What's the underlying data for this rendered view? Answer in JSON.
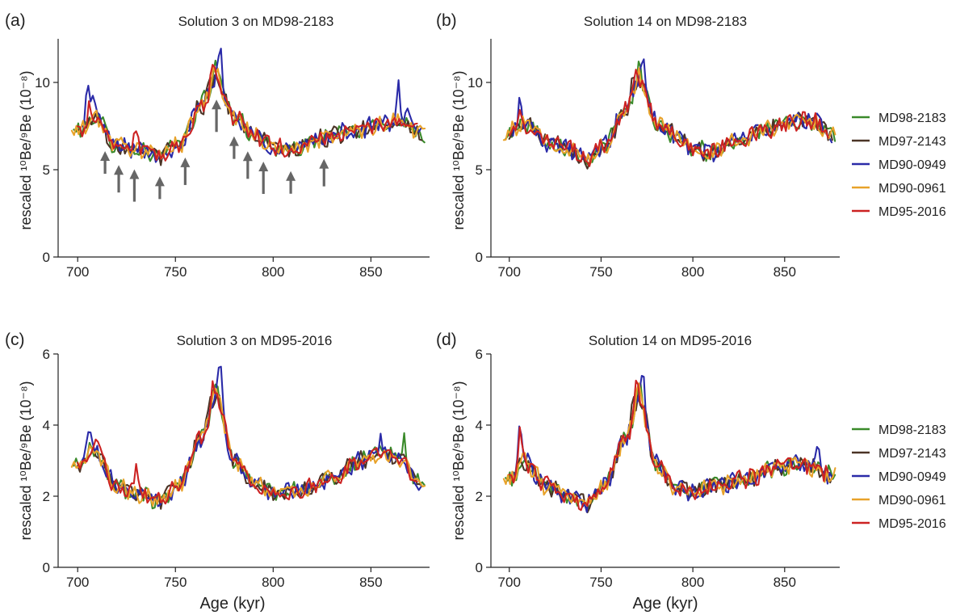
{
  "legend_series": [
    {
      "name": "MD98-2183",
      "color": "#3a8a2a"
    },
    {
      "name": "MD97-2143",
      "color": "#4b3426"
    },
    {
      "name": "MD90-0949",
      "color": "#2a2aa8"
    },
    {
      "name": "MD90-0961",
      "color": "#e8a22a"
    },
    {
      "name": "MD95-2016",
      "color": "#cc2222"
    }
  ],
  "arrow_color": "#666666",
  "chart_data": [
    {
      "type": "line",
      "panel": "(a)",
      "title": "Solution 3 on MD98-2183",
      "xlabel": "",
      "ylabel": "rescaled ¹⁰Be/⁹Be (10⁻⁸)",
      "xlim": [
        690,
        880
      ],
      "ylim": [
        0,
        12.5
      ],
      "xticks": [
        700,
        750,
        800,
        850
      ],
      "yticks": [
        0,
        5,
        10
      ],
      "anchors": [
        [
          700,
          7.2
        ],
        [
          710,
          8.0
        ],
        [
          718,
          6.5
        ],
        [
          730,
          6.2
        ],
        [
          742,
          5.8
        ],
        [
          752,
          6.5
        ],
        [
          763,
          8.6
        ],
        [
          771,
          10.2
        ],
        [
          780,
          8.1
        ],
        [
          790,
          7.0
        ],
        [
          800,
          6.3
        ],
        [
          810,
          6.1
        ],
        [
          825,
          6.8
        ],
        [
          840,
          7.2
        ],
        [
          855,
          7.6
        ],
        [
          865,
          7.8
        ],
        [
          875,
          7.1
        ]
      ],
      "arrows": [
        714,
        721,
        729,
        742,
        755,
        771,
        780,
        787,
        795,
        809,
        826
      ],
      "series": [
        {
          "name": "MD98-2183",
          "x_range": [
            698,
            878
          ],
          "spikes": [
            [
              771,
              1.1
            ],
            [
              765,
              0.5
            ]
          ]
        },
        {
          "name": "MD97-2143",
          "x_range": [
            700,
            876
          ],
          "spikes": [
            [
              767,
              0.9
            ],
            [
              840,
              0.5
            ]
          ]
        },
        {
          "name": "MD90-0949",
          "x_range": [
            702,
            876
          ],
          "spikes": [
            [
              705,
              2.2
            ],
            [
              708,
              1.6
            ],
            [
              773,
              1.9
            ],
            [
              864,
              1.8
            ],
            [
              868,
              1.0
            ]
          ]
        },
        {
          "name": "MD90-0961",
          "x_range": [
            697,
            878
          ],
          "spikes": [
            [
              770,
              0.7
            ]
          ]
        },
        {
          "name": "MD95-2016",
          "x_range": [
            700,
            874
          ],
          "spikes": [
            [
              706,
              1.0
            ],
            [
              730,
              1.4
            ],
            [
              769,
              0.6
            ]
          ]
        }
      ]
    },
    {
      "type": "line",
      "panel": "(b)",
      "title": "Solution 14 on MD98-2183",
      "xlabel": "",
      "ylabel": "rescaled ¹⁰Be/⁹Be (10⁻⁸)",
      "xlim": [
        690,
        880
      ],
      "ylim": [
        0,
        12.5
      ],
      "xticks": [
        700,
        750,
        800,
        850
      ],
      "yticks": [
        0,
        5,
        10
      ],
      "anchors": [
        [
          700,
          7.2
        ],
        [
          710,
          7.6
        ],
        [
          720,
          6.6
        ],
        [
          732,
          6.2
        ],
        [
          742,
          5.6
        ],
        [
          752,
          6.4
        ],
        [
          763,
          8.4
        ],
        [
          771,
          10.1
        ],
        [
          780,
          7.8
        ],
        [
          790,
          7.0
        ],
        [
          800,
          6.2
        ],
        [
          810,
          6.0
        ],
        [
          825,
          6.8
        ],
        [
          840,
          7.3
        ],
        [
          855,
          7.8
        ],
        [
          865,
          7.8
        ],
        [
          875,
          7.0
        ]
      ],
      "arrows": [],
      "series": [
        {
          "name": "MD98-2183",
          "x_range": [
            698,
            878
          ],
          "spikes": [
            [
              771,
              0.8
            ]
          ]
        },
        {
          "name": "MD97-2143",
          "x_range": [
            700,
            876
          ],
          "spikes": [
            [
              767,
              0.9
            ]
          ]
        },
        {
          "name": "MD90-0949",
          "x_range": [
            702,
            876
          ],
          "spikes": [
            [
              706,
              1.8
            ],
            [
              773,
              1.8
            ],
            [
              868,
              0.8
            ]
          ]
        },
        {
          "name": "MD90-0961",
          "x_range": [
            697,
            878
          ],
          "spikes": [
            [
              770,
              0.5
            ]
          ]
        },
        {
          "name": "MD95-2016",
          "x_range": [
            700,
            874
          ],
          "spikes": [
            [
              706,
              1.0
            ],
            [
              768,
              0.8
            ]
          ]
        }
      ]
    },
    {
      "type": "line",
      "panel": "(c)",
      "title": "Solution 3 on MD95-2016",
      "xlabel": "Age (kyr)",
      "ylabel": "rescaled ¹⁰Be/⁹Be (10⁻⁸)",
      "xlim": [
        690,
        880
      ],
      "ylim": [
        0,
        6
      ],
      "xticks": [
        700,
        750,
        800,
        850
      ],
      "yticks": [
        0,
        2,
        4,
        6
      ],
      "anchors": [
        [
          700,
          2.9
        ],
        [
          708,
          3.3
        ],
        [
          720,
          2.3
        ],
        [
          732,
          2.0
        ],
        [
          742,
          1.9
        ],
        [
          752,
          2.3
        ],
        [
          763,
          3.6
        ],
        [
          771,
          4.8
        ],
        [
          780,
          3.0
        ],
        [
          790,
          2.4
        ],
        [
          800,
          2.1
        ],
        [
          815,
          2.2
        ],
        [
          830,
          2.5
        ],
        [
          845,
          3.0
        ],
        [
          855,
          3.2
        ],
        [
          865,
          3.0
        ],
        [
          875,
          2.4
        ]
      ],
      "arrows": [],
      "series": [
        {
          "name": "MD98-2183",
          "x_range": [
            698,
            878
          ],
          "spikes": [
            [
              771,
              0.5
            ],
            [
              867,
              0.6
            ]
          ]
        },
        {
          "name": "MD97-2143",
          "x_range": [
            700,
            876
          ],
          "spikes": [
            [
              767,
              0.4
            ]
          ]
        },
        {
          "name": "MD90-0949",
          "x_range": [
            702,
            876
          ],
          "spikes": [
            [
              706,
              0.6
            ],
            [
              773,
              1.0
            ],
            [
              855,
              0.4
            ]
          ]
        },
        {
          "name": "MD90-0961",
          "x_range": [
            697,
            878
          ],
          "spikes": [
            [
              770,
              0.3
            ]
          ]
        },
        {
          "name": "MD95-2016",
          "x_range": [
            700,
            874
          ],
          "spikes": [
            [
              710,
              0.4
            ],
            [
              730,
              0.8
            ],
            [
              769,
              0.4
            ]
          ]
        }
      ]
    },
    {
      "type": "line",
      "panel": "(d)",
      "title": "Solution 14 on MD95-2016",
      "xlabel": "Age (kyr)",
      "ylabel": "rescaled ¹⁰Be/⁹Be (10⁻⁸)",
      "xlim": [
        690,
        880
      ],
      "ylim": [
        0,
        6
      ],
      "xticks": [
        700,
        750,
        800,
        850
      ],
      "yticks": [
        0,
        2,
        4,
        6
      ],
      "anchors": [
        [
          700,
          2.4
        ],
        [
          708,
          3.0
        ],
        [
          720,
          2.3
        ],
        [
          732,
          2.0
        ],
        [
          742,
          1.8
        ],
        [
          752,
          2.3
        ],
        [
          763,
          3.6
        ],
        [
          771,
          4.7
        ],
        [
          780,
          2.9
        ],
        [
          790,
          2.3
        ],
        [
          800,
          2.1
        ],
        [
          815,
          2.3
        ],
        [
          830,
          2.5
        ],
        [
          845,
          2.8
        ],
        [
          855,
          2.9
        ],
        [
          865,
          2.8
        ],
        [
          875,
          2.6
        ]
      ],
      "arrows": [],
      "series": [
        {
          "name": "MD98-2183",
          "x_range": [
            698,
            878
          ],
          "spikes": [
            [
              771,
              0.4
            ]
          ]
        },
        {
          "name": "MD97-2143",
          "x_range": [
            700,
            876
          ],
          "spikes": [
            [
              767,
              0.4
            ]
          ]
        },
        {
          "name": "MD90-0949",
          "x_range": [
            702,
            876
          ],
          "spikes": [
            [
              706,
              1.2
            ],
            [
              773,
              1.0
            ],
            [
              868,
              0.6
            ]
          ]
        },
        {
          "name": "MD90-0961",
          "x_range": [
            697,
            878
          ],
          "spikes": [
            [
              770,
              0.3
            ]
          ]
        },
        {
          "name": "MD95-2016",
          "x_range": [
            700,
            874
          ],
          "spikes": [
            [
              706,
              0.9
            ],
            [
              769,
              0.5
            ]
          ]
        }
      ]
    }
  ]
}
